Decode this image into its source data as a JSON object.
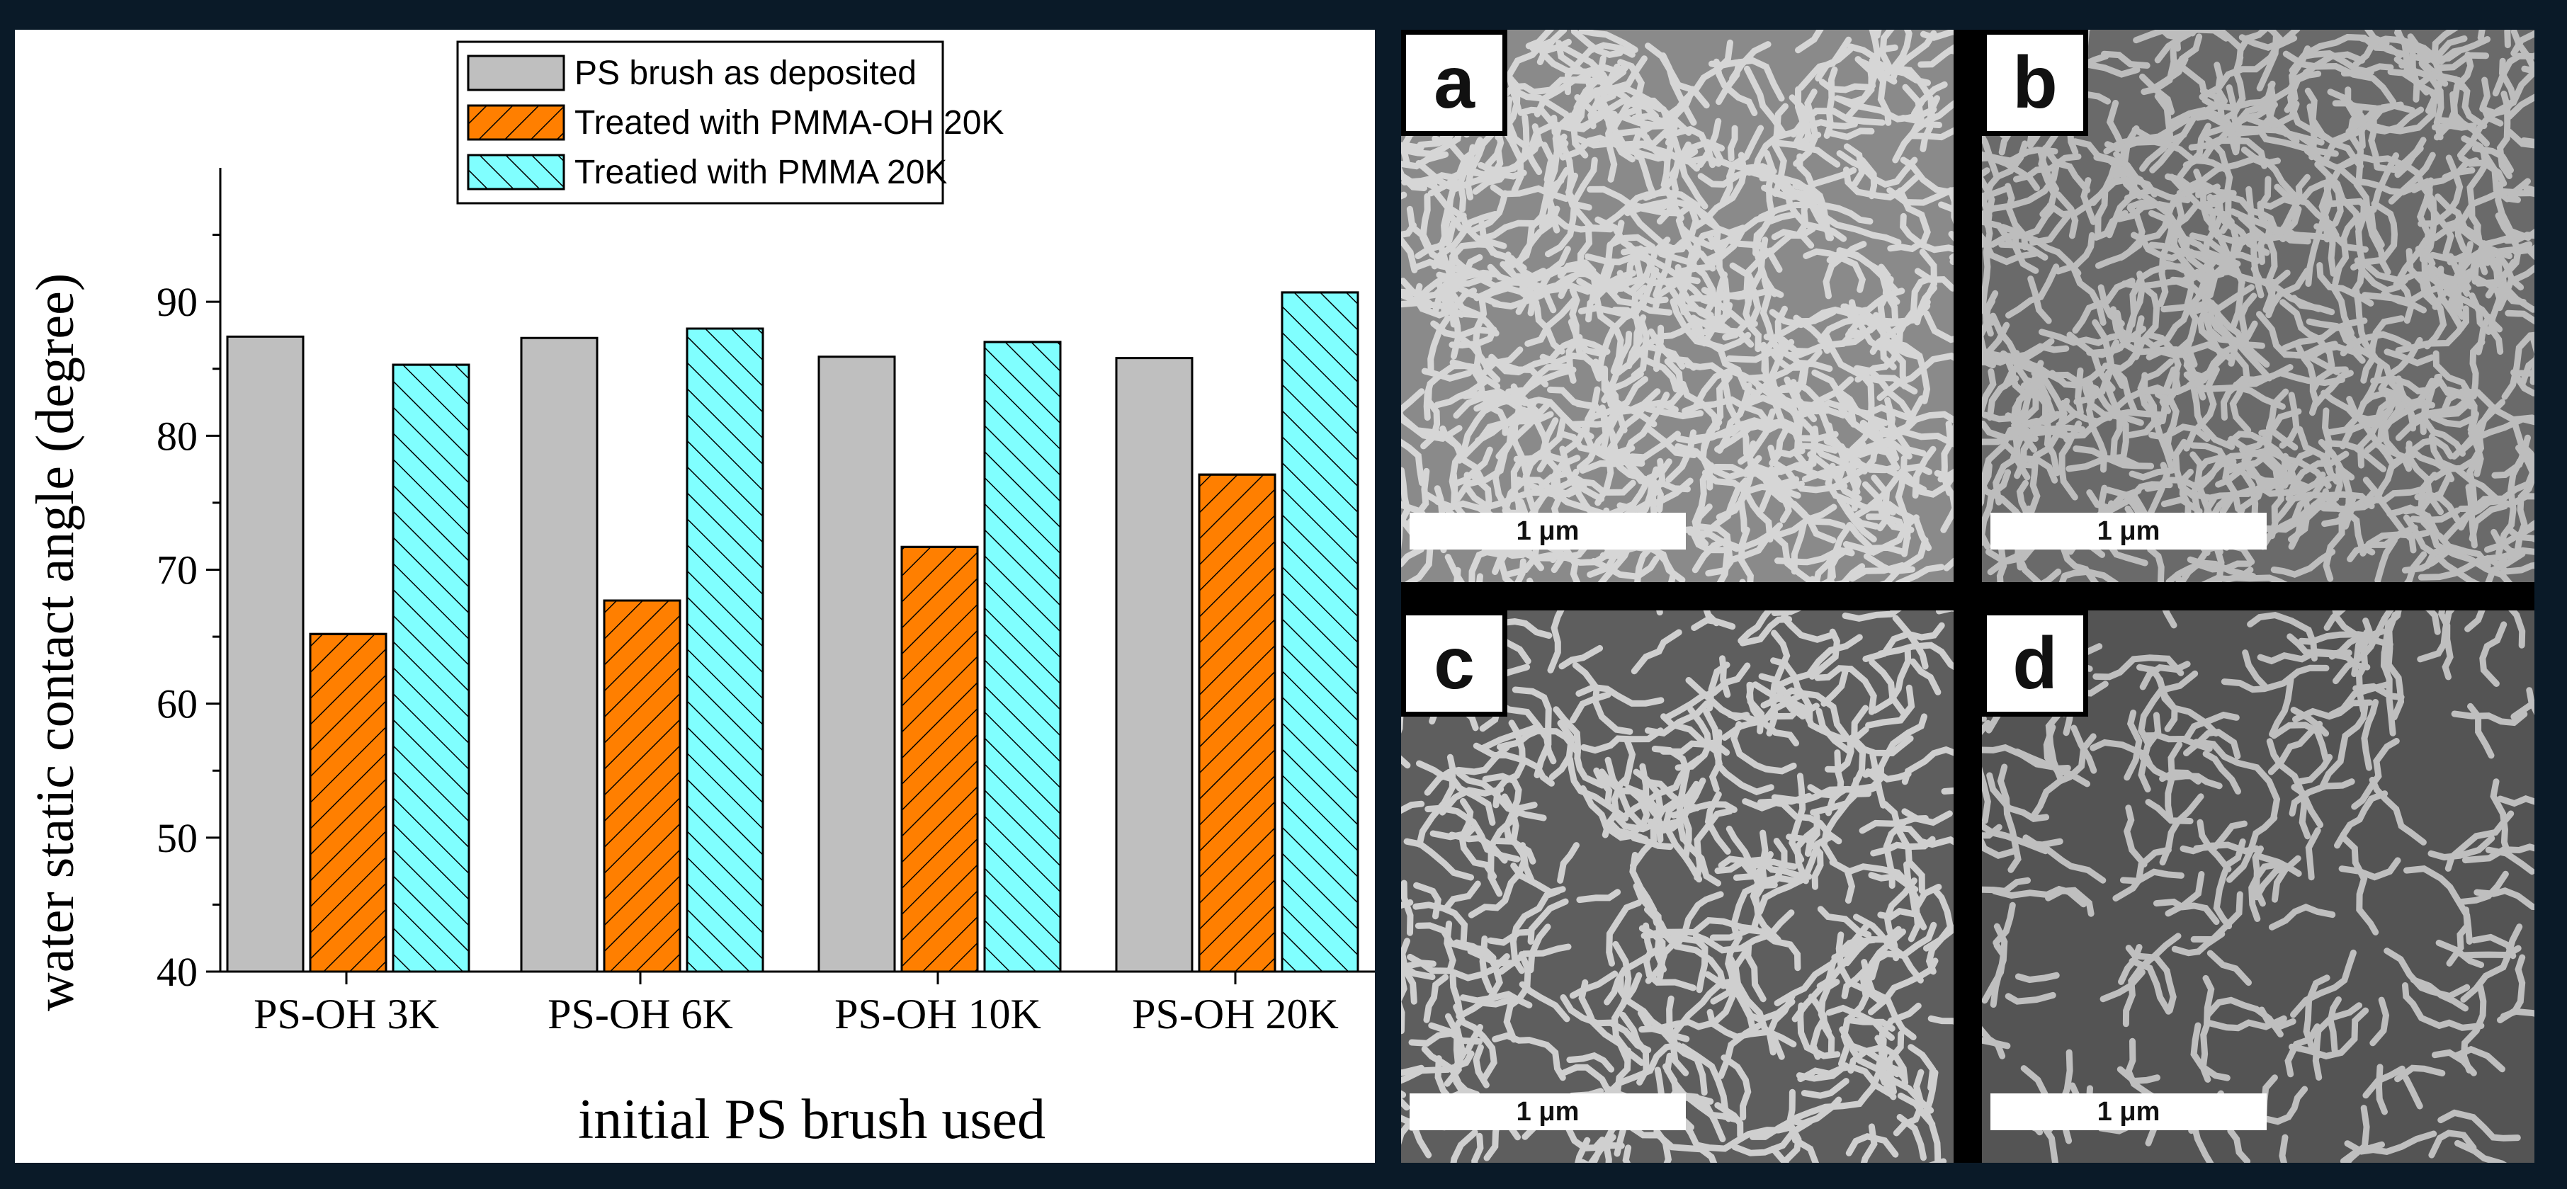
{
  "chart_data": {
    "type": "bar",
    "title": "",
    "xlabel": "initial PS brush used",
    "ylabel": "water static contact angle (degree)",
    "ylim": [
      40,
      100
    ],
    "yticks": [
      "40",
      "50",
      "60",
      "70",
      "80",
      "90"
    ],
    "categories": [
      "PS-OH 3K",
      "PS-OH 6K",
      "PS-OH 10K",
      "PS-OH 20K"
    ],
    "series": [
      {
        "name": "PS brush as deposited",
        "values": [
          87.4,
          87.3,
          85.9,
          85.8
        ],
        "color": "#bfbfbf",
        "pattern": "solid"
      },
      {
        "name": "Treated with PMMA-OH 20K",
        "values": [
          65.2,
          67.7,
          71.7,
          77.1
        ],
        "color": "#ff7f00",
        "pattern": "hatch-right"
      },
      {
        "name": "Treatied with PMMA 20K",
        "values": [
          85.3,
          88.0,
          87.0,
          90.7
        ],
        "color": "#80ffff",
        "pattern": "hatch-left"
      }
    ],
    "legend_position": "top-center",
    "grid": false
  },
  "panels": [
    {
      "id": "a",
      "label": "a",
      "scale": "1 μm",
      "tone": "#8a8a8a",
      "stripes": "#d6d6d6",
      "coverage": 1.0
    },
    {
      "id": "b",
      "label": "b",
      "scale": "1 μm",
      "tone": "#6a6a6a",
      "stripes": "#bdbdbd",
      "coverage": 1.0
    },
    {
      "id": "c",
      "label": "c",
      "scale": "1 μm",
      "tone": "#5e5e5e",
      "stripes": "#cfcfcf",
      "coverage": 0.6
    },
    {
      "id": "d",
      "label": "d",
      "scale": "1 μm",
      "tone": "#545454",
      "stripes": "#bfbfbf",
      "coverage": 0.35
    }
  ]
}
